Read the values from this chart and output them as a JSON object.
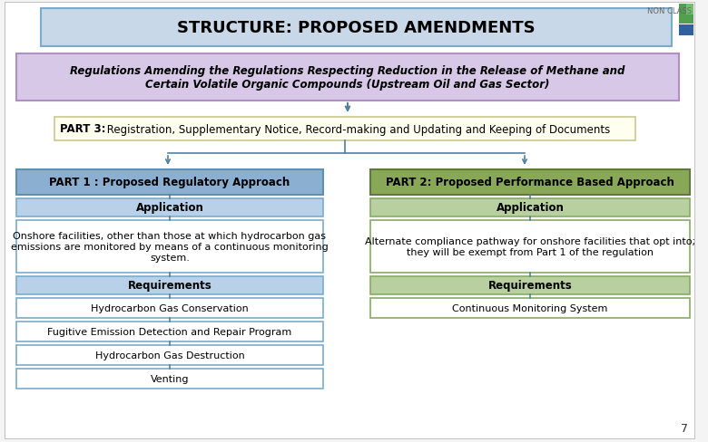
{
  "title": "STRUCTURE: PROPOSED AMENDMENTS",
  "title_bg": "#c8d8e8",
  "title_border": "#7aabcc",
  "subtitle": "Regulations Amending the Regulations Respecting Reduction in the Release of Methane and\nCertain Volatile Organic Compounds (Upstream Oil and Gas Sector)",
  "subtitle_bg": "#d8c8e8",
  "subtitle_border": "#b090c0",
  "part3_label": "PART 3:",
  "part3_text": " Registration, Supplementary Notice, Record-making and Updating and Keeping of Documents",
  "part3_bg": "#fffff0",
  "part3_border": "#c8c890",
  "part1_header": "PART 1 : Proposed Regulatory Approach",
  "part1_header_bg": "#8bafd0",
  "part1_header_border": "#6090b0",
  "part2_header": "PART 2: Proposed Performance Based Approach",
  "part2_header_bg": "#88a858",
  "part2_header_border": "#607840",
  "app1_bg": "#b8d0e8",
  "app1_border": "#7aabcc",
  "app2_bg": "#b8d0a0",
  "app2_border": "#88aa68",
  "req1_bg": "#b8d0e8",
  "req1_border": "#7aabcc",
  "req2_bg": "#b8d0a0",
  "req2_border": "#88aa68",
  "item1_bg": "#ffffff",
  "item1_border": "#7aabcc",
  "item2_bg": "#ffffff",
  "item2_border": "#88aa68",
  "arrow_color": "#5080a0",
  "bg_color": "#f4f4f4",
  "slide_bg": "#ffffff",
  "non_class_text": "NON CLASS",
  "page_num": "7",
  "left_items": [
    "Hydrocarbon Gas Conservation",
    "Fugitive Emission Detection and Repair Program",
    "Hydrocarbon Gas Destruction",
    "Venting"
  ],
  "right_items": [
    "Continuous Monitoring System"
  ],
  "part1_app_text": "Onshore facilities, other than those at which hydrocarbon gas\nemissions are monitored by means of a continuous monitoring\nsystem.",
  "part2_app_text": "Alternate compliance pathway for onshore facilities that opt into;\nthey will be exempt from Part 1 of the regulation"
}
